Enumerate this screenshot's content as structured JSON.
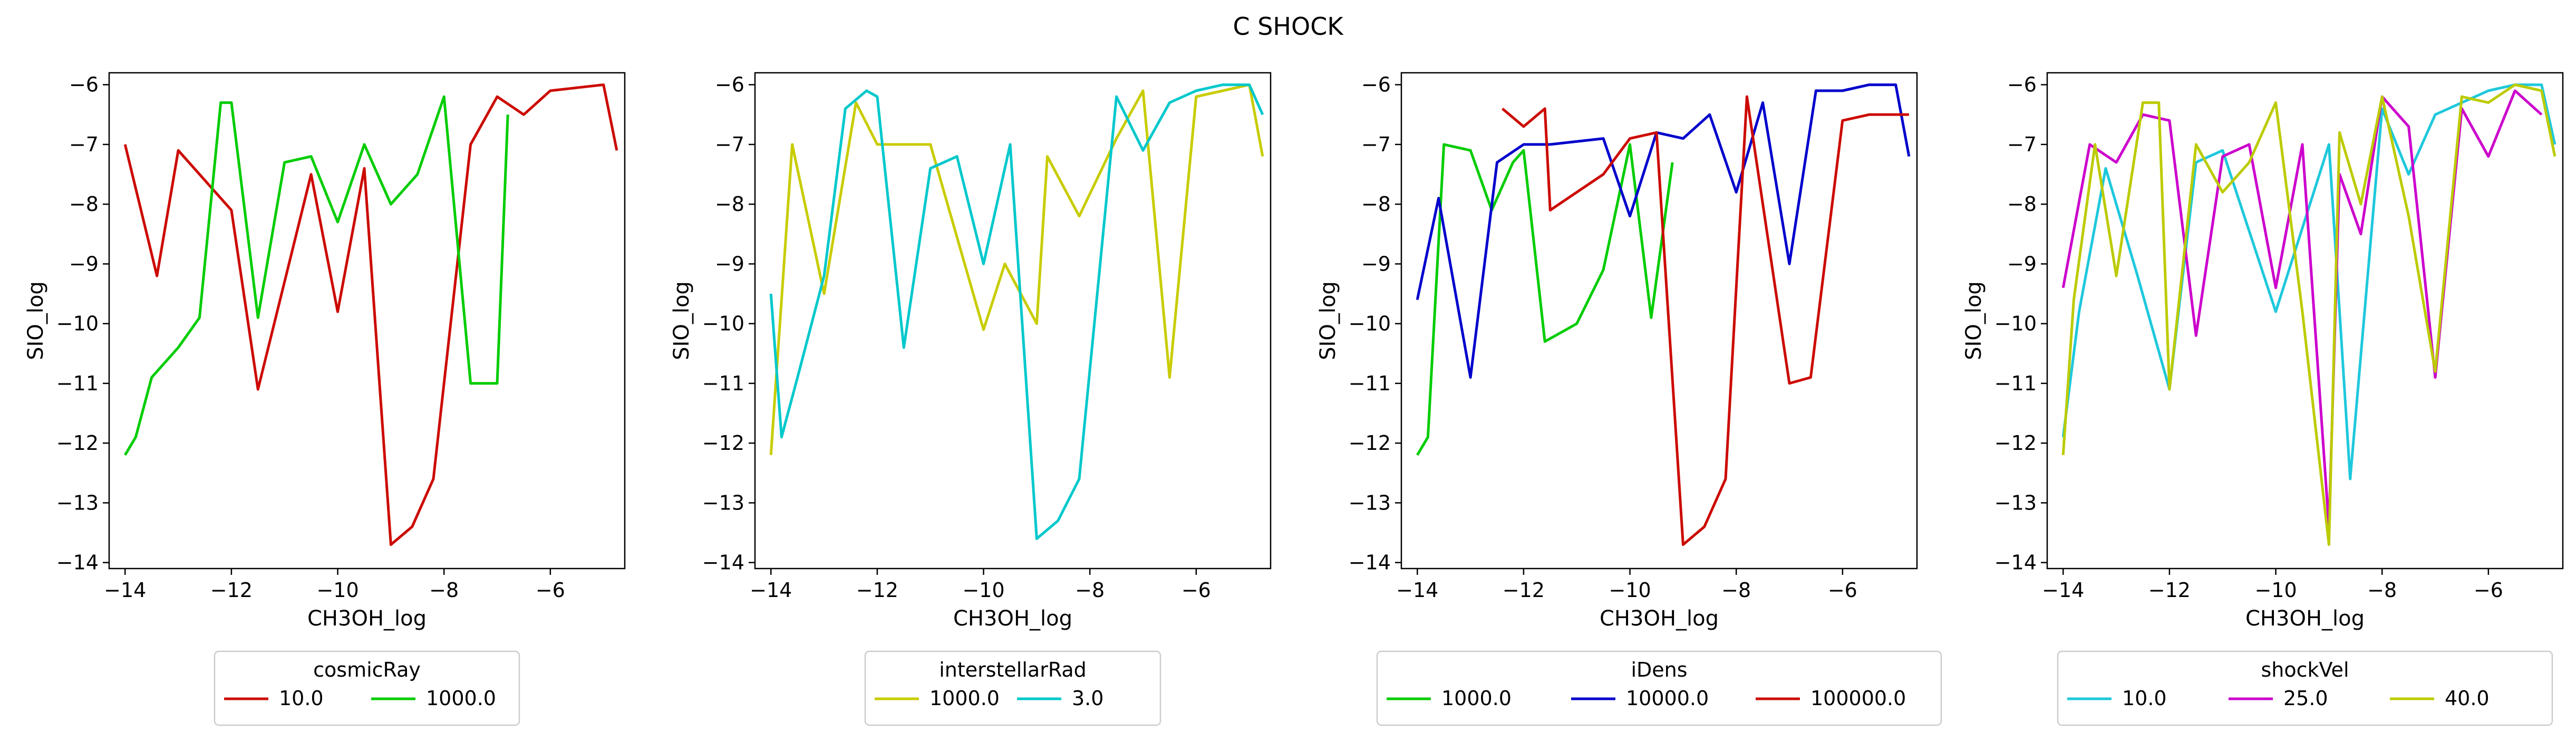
{
  "figure": {
    "title": "C SHOCK"
  },
  "chart_data": [
    {
      "type": "line",
      "xlabel": "CH3OH_log",
      "ylabel": "SIO_log",
      "xlim": [
        -14.3,
        -4.6
      ],
      "ylim": [
        -14.1,
        -5.8
      ],
      "xticks": [
        -14,
        -12,
        -10,
        -8,
        -6
      ],
      "yticks": [
        -14,
        -13,
        -12,
        -11,
        -10,
        -9,
        -8,
        -7,
        -6
      ],
      "legend": {
        "title": "cosmicRay",
        "placement": "below",
        "entries": [
          "10.0",
          "1000.0"
        ]
      },
      "series": [
        {
          "name": "10.0",
          "color": "#cc0a00",
          "x": [
            -14.0,
            -13.4,
            -13.0,
            -12.0,
            -11.5,
            -10.5,
            -10.0,
            -9.5,
            -9.0,
            -8.6,
            -8.2,
            -7.5,
            -7.0,
            -6.5,
            -6.0,
            -5.5,
            -5.0,
            -4.75
          ],
          "y": [
            -7.0,
            -9.2,
            -7.1,
            -8.1,
            -11.1,
            -7.5,
            -9.8,
            -7.4,
            -13.7,
            -13.4,
            -12.6,
            -7.0,
            -6.2,
            -6.5,
            -6.1,
            -6.05,
            -6.0,
            -7.1
          ]
        },
        {
          "name": "1000.0",
          "color": "#00cc00",
          "x": [
            -14.0,
            -13.8,
            -13.5,
            -13.0,
            -12.6,
            -12.2,
            -12.0,
            -11.5,
            -11.0,
            -10.5,
            -10.0,
            -9.5,
            -9.0,
            -8.5,
            -8.0,
            -7.5,
            -7.0,
            -6.8
          ],
          "y": [
            -12.2,
            -11.9,
            -10.9,
            -10.4,
            -9.9,
            -6.3,
            -6.3,
            -9.9,
            -7.3,
            -7.2,
            -8.3,
            -7.0,
            -8.0,
            -7.5,
            -6.2,
            -11.0,
            -11.0,
            -6.5
          ]
        }
      ]
    },
    {
      "type": "line",
      "xlabel": "CH3OH_log",
      "ylabel": "SIO_log",
      "xlim": [
        -14.3,
        -4.6
      ],
      "ylim": [
        -14.1,
        -5.8
      ],
      "xticks": [
        -14,
        -12,
        -10,
        -8,
        -6
      ],
      "yticks": [
        -14,
        -13,
        -12,
        -11,
        -10,
        -9,
        -8,
        -7,
        -6
      ],
      "legend": {
        "title": "interstellarRad",
        "placement": "below",
        "entries": [
          "1000.0",
          "3.0"
        ]
      },
      "series": [
        {
          "name": "1000.0",
          "color": "#c8cc00",
          "x": [
            -14.0,
            -13.6,
            -13.0,
            -12.4,
            -12.0,
            -11.0,
            -10.0,
            -9.6,
            -9.0,
            -8.8,
            -8.2,
            -7.5,
            -7.0,
            -6.5,
            -6.0,
            -5.5,
            -5.0,
            -4.75
          ],
          "y": [
            -12.2,
            -7.0,
            -9.5,
            -6.3,
            -7.0,
            -7.0,
            -10.1,
            -9.0,
            -10.0,
            -7.2,
            -8.2,
            -6.9,
            -6.1,
            -10.9,
            -6.2,
            -6.1,
            -6.0,
            -7.2
          ]
        },
        {
          "name": "3.0",
          "color": "#00c8cc",
          "x": [
            -14.0,
            -13.8,
            -13.5,
            -13.0,
            -12.6,
            -12.2,
            -12.0,
            -11.5,
            -11.0,
            -10.5,
            -10.0,
            -9.5,
            -9.0,
            -8.6,
            -8.2,
            -7.5,
            -7.0,
            -6.5,
            -6.0,
            -5.5,
            -5.0,
            -4.75
          ],
          "y": [
            -9.5,
            -11.9,
            -10.9,
            -9.2,
            -6.4,
            -6.1,
            -6.2,
            -10.4,
            -7.4,
            -7.2,
            -9.0,
            -7.0,
            -13.6,
            -13.3,
            -12.6,
            -6.2,
            -7.1,
            -6.3,
            -6.1,
            -6.0,
            -6.0,
            -6.5
          ]
        }
      ]
    },
    {
      "type": "line",
      "xlabel": "CH3OH_log",
      "ylabel": "SIO_log",
      "xlim": [
        -14.3,
        -4.6
      ],
      "ylim": [
        -14.1,
        -5.8
      ],
      "xticks": [
        -14,
        -12,
        -10,
        -8,
        -6
      ],
      "yticks": [
        -14,
        -13,
        -12,
        -11,
        -10,
        -9,
        -8,
        -7,
        -6
      ],
      "legend": {
        "title": "iDens",
        "placement": "below",
        "entries": [
          "1000.0",
          "10000.0",
          "100000.0"
        ]
      },
      "series": [
        {
          "name": "1000.0",
          "color": "#00cc00",
          "x": [
            -14.0,
            -13.8,
            -13.5,
            -13.0,
            -12.6,
            -12.2,
            -12.0,
            -11.6,
            -11.0,
            -10.5,
            -10.0,
            -9.6,
            -9.2
          ],
          "y": [
            -12.2,
            -11.9,
            -7.0,
            -7.1,
            -8.1,
            -7.3,
            -7.1,
            -10.3,
            -10.0,
            -9.1,
            -7.0,
            -9.9,
            -7.3
          ]
        },
        {
          "name": "10000.0",
          "color": "#0000cc",
          "x": [
            -14.0,
            -13.6,
            -13.0,
            -12.5,
            -12.0,
            -11.5,
            -10.5,
            -10.0,
            -9.5,
            -9.0,
            -8.5,
            -8.0,
            -7.5,
            -7.0,
            -6.5,
            -6.0,
            -5.5,
            -5.0,
            -4.75
          ],
          "y": [
            -9.6,
            -7.9,
            -10.9,
            -7.3,
            -7.0,
            -7.0,
            -6.9,
            -8.2,
            -6.8,
            -6.9,
            -6.5,
            -7.8,
            -6.3,
            -9.0,
            -6.1,
            -6.1,
            -6.0,
            -6.0,
            -7.2
          ]
        },
        {
          "name": "100000.0",
          "color": "#cc0a00",
          "x": [
            -12.4,
            -12.0,
            -11.6,
            -11.5,
            -10.5,
            -10.0,
            -9.5,
            -9.0,
            -8.6,
            -8.2,
            -7.8,
            -7.0,
            -6.6,
            -6.0,
            -5.5,
            -4.75
          ],
          "y": [
            -6.4,
            -6.7,
            -6.4,
            -8.1,
            -7.5,
            -6.9,
            -6.8,
            -13.7,
            -13.4,
            -12.6,
            -6.2,
            -11.0,
            -10.9,
            -6.6,
            -6.5,
            -6.5
          ]
        }
      ]
    },
    {
      "type": "line",
      "xlabel": "CH3OH_log",
      "ylabel": "SIO_log",
      "xlim": [
        -14.3,
        -4.6
      ],
      "ylim": [
        -14.1,
        -5.8
      ],
      "xticks": [
        -14,
        -12,
        -10,
        -8,
        -6
      ],
      "yticks": [
        -14,
        -13,
        -12,
        -11,
        -10,
        -9,
        -8,
        -7,
        -6
      ],
      "legend": {
        "title": "shockVel",
        "placement": "below",
        "entries": [
          "10.0",
          "25.0",
          "40.0"
        ]
      },
      "series": [
        {
          "name": "10.0",
          "color": "#1ec8dc",
          "x": [
            -14.0,
            -13.7,
            -13.2,
            -12.6,
            -12.0,
            -11.5,
            -11.0,
            -10.0,
            -9.0,
            -8.6,
            -8.0,
            -7.5,
            -7.0,
            -6.5,
            -6.0,
            -5.5,
            -5.0,
            -4.75
          ],
          "y": [
            -11.9,
            -9.8,
            -7.4,
            -9.2,
            -11.1,
            -7.3,
            -7.1,
            -9.8,
            -7.0,
            -12.6,
            -6.4,
            -7.5,
            -6.5,
            -6.3,
            -6.1,
            -6.0,
            -6.0,
            -7.0
          ]
        },
        {
          "name": "25.0",
          "color": "#cc00cc",
          "x": [
            -14.0,
            -13.5,
            -13.0,
            -12.5,
            -12.0,
            -11.5,
            -11.0,
            -10.5,
            -10.0,
            -9.5,
            -9.0,
            -8.8,
            -8.4,
            -8.0,
            -7.5,
            -7.0,
            -6.5,
            -6.0,
            -5.5,
            -5.0
          ],
          "y": [
            -9.4,
            -7.0,
            -7.3,
            -6.5,
            -6.6,
            -10.2,
            -7.2,
            -7.0,
            -9.4,
            -7.0,
            -13.4,
            -7.5,
            -8.5,
            -6.2,
            -6.7,
            -10.9,
            -6.4,
            -7.2,
            -6.1,
            -6.5
          ]
        },
        {
          "name": "40.0",
          "color": "#bccb00",
          "x": [
            -14.0,
            -13.8,
            -13.4,
            -13.0,
            -12.5,
            -12.2,
            -12.0,
            -11.5,
            -11.0,
            -10.5,
            -10.0,
            -9.5,
            -9.0,
            -8.8,
            -8.4,
            -8.0,
            -7.5,
            -7.0,
            -6.5,
            -6.0,
            -5.5,
            -5.0,
            -4.75
          ],
          "y": [
            -12.2,
            -9.6,
            -7.0,
            -9.2,
            -6.3,
            -6.3,
            -11.1,
            -7.0,
            -7.8,
            -7.3,
            -6.3,
            -9.8,
            -13.7,
            -6.8,
            -8.0,
            -6.2,
            -8.2,
            -10.8,
            -6.2,
            -6.3,
            -6.0,
            -6.1,
            -7.2
          ]
        }
      ]
    }
  ]
}
